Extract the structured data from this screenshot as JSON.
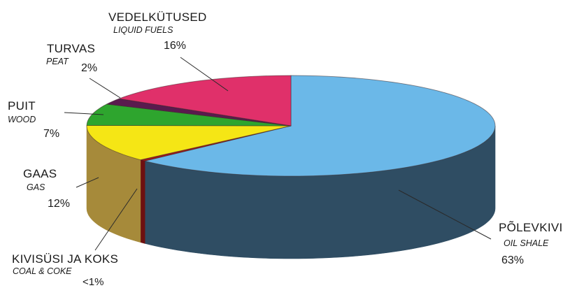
{
  "chart_data": {
    "type": "pie",
    "style": "3d",
    "slices": [
      {
        "label": "PÕLEVKIVI",
        "label_en": "OIL SHALE",
        "value": 63,
        "value_text": "63%",
        "color": "#6bb8e8",
        "side_color": "#2f4d63"
      },
      {
        "label": "KIVISÜSI JA KOKS",
        "label_en": "COAL & COKE",
        "value": 0.5,
        "value_text": "<1%",
        "color": "#a01818",
        "side_color": "#6e1010"
      },
      {
        "label": "GAAS",
        "label_en": "GAS",
        "value": 12,
        "value_text": "12%",
        "color": "#f5e615",
        "side_color": "#a68a3a"
      },
      {
        "label": "PUIT",
        "label_en": "WOOD",
        "value": 7,
        "value_text": "7%",
        "color": "#2ea52e",
        "side_color": "#1c6b1c"
      },
      {
        "label": "TURVAS",
        "label_en": "PEAT",
        "value": 2,
        "value_text": "2%",
        "color": "#5a1a4e",
        "side_color": "#3a0f32"
      },
      {
        "label": "VEDELKÜTUSED",
        "label_en": "LIQUID FUELS",
        "value": 16,
        "value_text": "16%",
        "color": "#e0306a",
        "side_color": "#a8204c"
      }
    ]
  }
}
